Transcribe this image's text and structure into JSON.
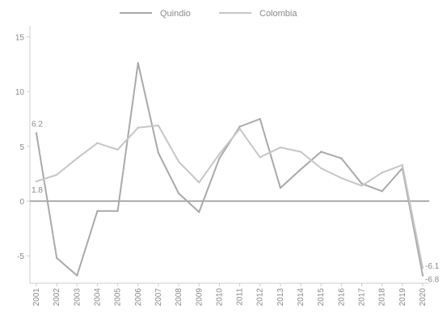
{
  "chart_data": {
    "type": "line",
    "title": "",
    "xlabel": "",
    "ylabel": "",
    "x": [
      "2001",
      "2002",
      "2003",
      "2004",
      "2005",
      "2006",
      "2007",
      "2008",
      "2009",
      "2010",
      "2011",
      "2012",
      "2013",
      "2014",
      "2015",
      "2016",
      "2017",
      "2018",
      "2019",
      "2020"
    ],
    "series": [
      {
        "name": "Quindio",
        "color": "#a9a9a9",
        "values": [
          6.2,
          -5.2,
          -6.8,
          -0.9,
          -0.9,
          12.6,
          4.4,
          0.7,
          -1.0,
          3.9,
          6.8,
          7.5,
          1.2,
          2.9,
          4.5,
          3.9,
          1.6,
          0.9,
          3.0,
          -6.8
        ]
      },
      {
        "name": "Colombia",
        "color": "#c6c6c6",
        "values": [
          1.8,
          2.4,
          3.9,
          5.3,
          4.7,
          6.7,
          6.9,
          3.6,
          1.7,
          4.3,
          6.6,
          4.0,
          4.9,
          4.5,
          3.0,
          2.1,
          1.4,
          2.6,
          3.3,
          -6.1
        ]
      }
    ],
    "ylim": [
      -7.5,
      16
    ],
    "yticks": [
      -5,
      0,
      5,
      10,
      15
    ],
    "x_tick_labels": [
      "2001",
      "2002",
      "2003",
      "2004",
      "2005",
      "2006",
      "2007",
      "2008",
      "2009",
      "2010",
      "2011",
      "2012",
      "2013",
      "2014",
      "2015",
      "2016",
      "2017",
      "2018",
      "2019",
      "2020"
    ],
    "annotations": [
      {
        "series": "Quindio",
        "index": 0,
        "text": "6.2"
      },
      {
        "series": "Colombia",
        "index": 0,
        "text": "1.8"
      },
      {
        "series": "Colombia",
        "index": 19,
        "text": "-6.1"
      },
      {
        "series": "Quindio",
        "index": 19,
        "text": "-6.8"
      }
    ],
    "zero_line": true,
    "grid": false,
    "legend_position": "top-center"
  }
}
